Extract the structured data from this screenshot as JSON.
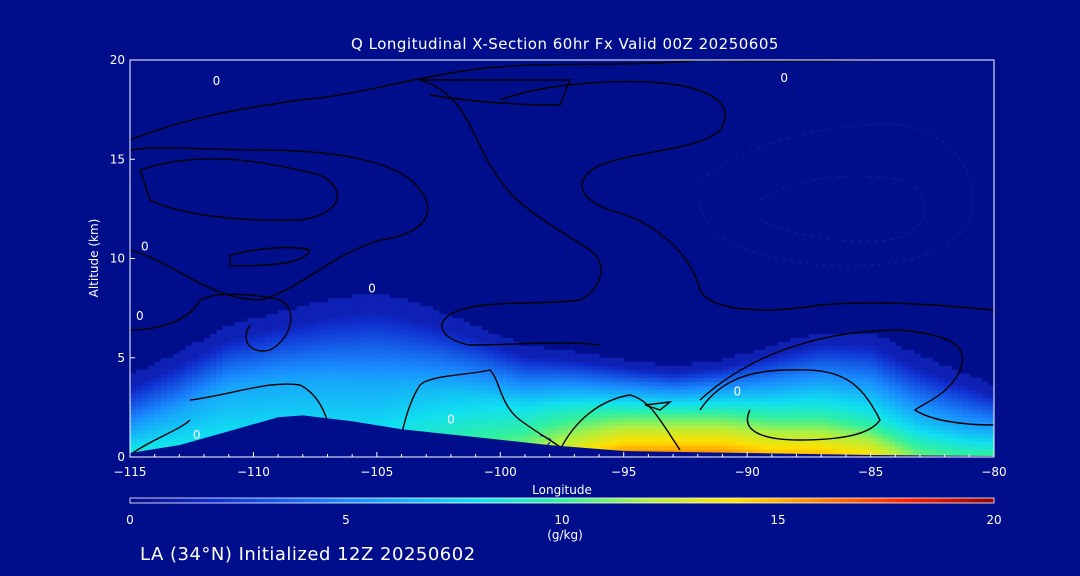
{
  "chart_data": {
    "type": "heatmap",
    "title": "Q Longitudinal X-Section 60hr  Fx Valid 00Z 20250605",
    "xlabel": "Longitude",
    "ylabel": "Altitude (km)",
    "xlim": [
      -115,
      -80
    ],
    "ylim": [
      0,
      20
    ],
    "x_ticks": [
      "−115",
      "−110",
      "−105",
      "−100",
      "−95",
      "−90",
      "−85",
      "−80"
    ],
    "y_ticks": [
      "0",
      "5",
      "10",
      "15",
      "20"
    ],
    "colorbar": {
      "label": "(g/kg)",
      "range": [
        0,
        20
      ],
      "ticks": [
        "0",
        "5",
        "10",
        "15",
        "20"
      ]
    },
    "moisture_profile": [
      {
        "lon": -115,
        "top": 4.0,
        "peak_q": 9,
        "moist_top": 1.3
      },
      {
        "lon": -113,
        "top": 5.2,
        "peak_q": 9,
        "moist_top": 2.3
      },
      {
        "lon": -111,
        "top": 6.5,
        "peak_q": 9,
        "moist_top": 3.5
      },
      {
        "lon": -109,
        "top": 7.2,
        "peak_q": 9,
        "moist_top": 3.8
      },
      {
        "lon": -107,
        "top": 7.8,
        "peak_q": 9,
        "moist_top": 3.9
      },
      {
        "lon": -105,
        "top": 8.2,
        "peak_q": 9,
        "moist_top": 3.8
      },
      {
        "lon": -103,
        "top": 7.5,
        "peak_q": 10,
        "moist_top": 3.4
      },
      {
        "lon": -101,
        "top": 6.5,
        "peak_q": 11,
        "moist_top": 3.0
      },
      {
        "lon": -99,
        "top": 5.5,
        "peak_q": 12,
        "moist_top": 2.5
      },
      {
        "lon": -97,
        "top": 5.2,
        "peak_q": 14,
        "moist_top": 2.3
      },
      {
        "lon": -95,
        "top": 4.8,
        "peak_q": 16,
        "moist_top": 2.0
      },
      {
        "lon": -93,
        "top": 4.5,
        "peak_q": 16,
        "moist_top": 2.0
      },
      {
        "lon": -91,
        "top": 4.8,
        "peak_q": 16,
        "moist_top": 2.0
      },
      {
        "lon": -89,
        "top": 5.5,
        "peak_q": 15,
        "moist_top": 2.0
      },
      {
        "lon": -87,
        "top": 6.2,
        "peak_q": 15,
        "moist_top": 2.0
      },
      {
        "lon": -85,
        "top": 6.2,
        "peak_q": 14,
        "moist_top": 1.8
      },
      {
        "lon": -83,
        "top": 5.0,
        "peak_q": 11,
        "moist_top": 1.5
      },
      {
        "lon": -81,
        "top": 4.0,
        "peak_q": 10,
        "moist_top": 1.2
      },
      {
        "lon": -80,
        "top": 3.5,
        "peak_q": 10,
        "moist_top": 1.1
      }
    ],
    "terrain": [
      {
        "lon": -115,
        "alt": 0.2
      },
      {
        "lon": -113,
        "alt": 0.6
      },
      {
        "lon": -111,
        "alt": 1.3
      },
      {
        "lon": -109,
        "alt": 2.0
      },
      {
        "lon": -108,
        "alt": 2.1
      },
      {
        "lon": -106,
        "alt": 1.8
      },
      {
        "lon": -104,
        "alt": 1.4
      },
      {
        "lon": -101,
        "alt": 1.0
      },
      {
        "lon": -98,
        "alt": 0.6
      },
      {
        "lon": -95,
        "alt": 0.3
      },
      {
        "lon": -90,
        "alt": 0.2
      },
      {
        "lon": -85,
        "alt": 0.1
      },
      {
        "lon": -80,
        "alt": 0.05
      }
    ],
    "contour_labels": [
      "0",
      "0",
      "0",
      "0",
      "0",
      "0",
      "0",
      "0"
    ]
  },
  "footer": "LA (34°N) Initialized 12Z 20250602"
}
